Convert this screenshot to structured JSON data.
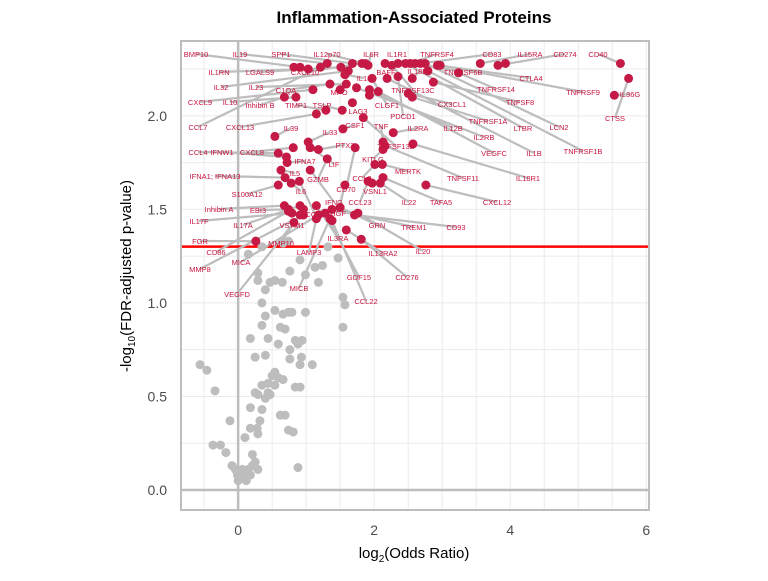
{
  "chart_data": {
    "type": "scatter",
    "title": "Inflammation-Associated Proteins",
    "xlabel": {
      "main": "log",
      "sub": "2",
      "rest": "(Odds Ratio)"
    },
    "ylabel": {
      "pre": "-log",
      "sub": "10",
      "rest": "(FDR-adjusted p-value)"
    },
    "xlim": [
      -0.84,
      6.04
    ],
    "ylim": [
      -0.107,
      2.4
    ],
    "xticks": [
      "0",
      "2",
      "4",
      "6"
    ],
    "xtick_values": [
      0,
      2,
      4,
      6
    ],
    "yticks": [
      "0.0",
      "0.5",
      "1.0",
      "1.5",
      "2.0"
    ],
    "ytick_values": [
      0,
      0.5,
      1,
      1.5,
      2
    ],
    "grid": true,
    "threshold": 1.301,
    "colors": {
      "significant": "#c41a45",
      "nonsignificant": "#bdbdbd",
      "threshold": "#ff0000",
      "label": "#c8143f",
      "connector": "#bdbdbd"
    },
    "significant_points": [
      {
        "x": 0.91,
        "y": 2.26,
        "label": "BMP10"
      },
      {
        "x": 1.03,
        "y": 2.25,
        "label": "IL1RN"
      },
      {
        "x": 1.31,
        "y": 2.28,
        "label": "IL19"
      },
      {
        "x": 1.51,
        "y": 2.26,
        "label": "LGALS9"
      },
      {
        "x": 1.68,
        "y": 2.28,
        "label": "SPP1"
      },
      {
        "x": 1.82,
        "y": 2.28,
        "label": "CXCL10"
      },
      {
        "x": 1.87,
        "y": 2.28,
        "label": "IL12p70"
      },
      {
        "x": 1.91,
        "y": 2.27,
        "label": "IL6R"
      },
      {
        "x": 2.16,
        "y": 2.28,
        "label": "BAFF"
      },
      {
        "x": 2.35,
        "y": 2.28,
        "label": "IL1R1"
      },
      {
        "x": 2.26,
        "y": 2.27,
        "label": "TNFRSF13C"
      },
      {
        "x": 2.53,
        "y": 2.28,
        "label": "TNFRSF4"
      },
      {
        "x": 2.6,
        "y": 2.28,
        "label": "TNFRSF6B"
      },
      {
        "x": 2.68,
        "y": 2.28,
        "label": "CD83"
      },
      {
        "x": 3.56,
        "y": 2.28,
        "label": "IL15RA"
      },
      {
        "x": 3.82,
        "y": 2.27,
        "label": "CD274"
      },
      {
        "x": 5.62,
        "y": 2.28,
        "label": "CD40"
      },
      {
        "x": 3.93,
        "y": 2.28,
        "label": ""
      },
      {
        "x": 5.53,
        "y": 2.11,
        "label": "IL36G"
      },
      {
        "x": 5.74,
        "y": 2.2,
        "label": "CTSS"
      },
      {
        "x": 2.93,
        "y": 2.27,
        "label": "CTLA4"
      },
      {
        "x": 3.24,
        "y": 2.23,
        "label": "TNFRSF14"
      },
      {
        "x": 2.97,
        "y": 2.27,
        "label": "TNFRSF9"
      },
      {
        "x": 2.87,
        "y": 2.18,
        "label": "TNFSF8"
      },
      {
        "x": 2.56,
        "y": 2.1,
        "label": "TNFRSF1A"
      },
      {
        "x": 2.5,
        "y": 2.12,
        "label": "CX3CL1"
      },
      {
        "x": 2.75,
        "y": 2.28,
        "label": "LCN2"
      },
      {
        "x": 2.46,
        "y": 2.28,
        "label": "LTBR"
      },
      {
        "x": 2.79,
        "y": 2.24,
        "label": "TNFRSF1B"
      },
      {
        "x": 2.19,
        "y": 2.2,
        "label": "IL1B"
      },
      {
        "x": 2.06,
        "y": 2.13,
        "label": "VEGFC"
      },
      {
        "x": 1.74,
        "y": 2.15,
        "label": "IL2RB"
      },
      {
        "x": 1.93,
        "y": 2.14,
        "label": "IL12B"
      },
      {
        "x": 2.28,
        "y": 1.91,
        "label": "IL2RA"
      },
      {
        "x": 1.57,
        "y": 2.22,
        "label": "IL18"
      },
      {
        "x": 1.97,
        "y": 2.2,
        "label": "CLGF1"
      },
      {
        "x": 2.35,
        "y": 2.21,
        "label": "PDCD1"
      },
      {
        "x": 2.56,
        "y": 2.2,
        "label": "IL18BP"
      },
      {
        "x": 1.62,
        "y": 2.24,
        "label": "IL32"
      },
      {
        "x": 1.59,
        "y": 2.17,
        "label": "IL23"
      },
      {
        "x": 1.35,
        "y": 2.17,
        "label": "C1QA"
      },
      {
        "x": 1.1,
        "y": 2.14,
        "label": "CXCL9"
      },
      {
        "x": 0.85,
        "y": 2.1,
        "label": "IL10"
      },
      {
        "x": 0.68,
        "y": 2.1,
        "label": "Inhibin B"
      },
      {
        "x": 1.5,
        "y": 2.14,
        "label": "MPO"
      },
      {
        "x": 1.68,
        "y": 2.07,
        "label": "LAG3"
      },
      {
        "x": 1.29,
        "y": 2.03,
        "label": "TIMP1"
      },
      {
        "x": 1.53,
        "y": 2.03,
        "label": "TSLP"
      },
      {
        "x": 1.84,
        "y": 1.99,
        "label": "TNFSF13B"
      },
      {
        "x": 1.21,
        "y": 2.26,
        "label": "CCL7"
      },
      {
        "x": 1.15,
        "y": 2.01,
        "label": "CXCL13"
      },
      {
        "x": 0.54,
        "y": 1.89,
        "label": "IL39"
      },
      {
        "x": 1.54,
        "y": 1.93,
        "label": "CSF1"
      },
      {
        "x": 2.13,
        "y": 1.86,
        "label": "TNF"
      },
      {
        "x": 1.03,
        "y": 1.86,
        "label": "IL33"
      },
      {
        "x": 1.18,
        "y": 1.82,
        "label": "PTX3"
      },
      {
        "x": 1.06,
        "y": 1.83,
        "label": "LIF"
      },
      {
        "x": 2.13,
        "y": 1.82,
        "label": "KITLG"
      },
      {
        "x": 2.01,
        "y": 1.74,
        "label": "CCL2"
      },
      {
        "x": 1.72,
        "y": 1.83,
        "label": "CD70"
      },
      {
        "x": 0.59,
        "y": 1.8,
        "label": "CCL4"
      },
      {
        "x": 0.71,
        "y": 1.78,
        "label": "IFNW1"
      },
      {
        "x": 0.81,
        "y": 1.83,
        "label": "CXCL8"
      },
      {
        "x": 0.72,
        "y": 1.75,
        "label": "IFNA7"
      },
      {
        "x": 1.31,
        "y": 1.77,
        "label": "GZMB"
      },
      {
        "x": 0.63,
        "y": 1.71,
        "label": "IL5"
      },
      {
        "x": 0.69,
        "y": 1.67,
        "label": "IFNA1; IFNA13"
      },
      {
        "x": 0.59,
        "y": 1.63,
        "label": "S100A12"
      },
      {
        "x": 1.06,
        "y": 1.71,
        "label": "IFNG"
      },
      {
        "x": 1.91,
        "y": 1.65,
        "label": "CCL23"
      },
      {
        "x": 2.12,
        "y": 1.74,
        "label": "MERTK"
      },
      {
        "x": 2.16,
        "y": 1.84,
        "label": "TNFSF11"
      },
      {
        "x": 2.57,
        "y": 1.85,
        "label": "IL18R1"
      },
      {
        "x": 0.9,
        "y": 1.65,
        "label": "CCL8"
      },
      {
        "x": 0.78,
        "y": 1.64,
        "label": "IL6"
      },
      {
        "x": 1.57,
        "y": 1.63,
        "label": "HGF"
      },
      {
        "x": 0.68,
        "y": 1.52,
        "label": "Inhibin A"
      },
      {
        "x": 0.74,
        "y": 1.5,
        "label": "EBI3"
      },
      {
        "x": 0.96,
        "y": 1.5,
        "label": "VSTM1"
      },
      {
        "x": 1.97,
        "y": 1.64,
        "label": "VSNL1"
      },
      {
        "x": 2.09,
        "y": 1.64,
        "label": "IL22"
      },
      {
        "x": 2.13,
        "y": 1.67,
        "label": "TAFA5"
      },
      {
        "x": 2.76,
        "y": 1.63,
        "label": "CXCL12"
      },
      {
        "x": 0.79,
        "y": 1.48,
        "label": "IL17F"
      },
      {
        "x": 0.91,
        "y": 1.52,
        "label": "IL17A"
      },
      {
        "x": 1.5,
        "y": 1.51,
        "label": "GRN"
      },
      {
        "x": 1.38,
        "y": 1.5,
        "label": "TREM1"
      },
      {
        "x": 1.71,
        "y": 1.47,
        "label": "CD93"
      },
      {
        "x": 0.82,
        "y": 1.43,
        "label": "MMP10"
      },
      {
        "x": 1.15,
        "y": 1.52,
        "label": "IL3RA"
      },
      {
        "x": 0.26,
        "y": 1.33,
        "label": "FGR"
      },
      {
        "x": 0.74,
        "y": 1.49,
        "label": "CD86"
      },
      {
        "x": 1.76,
        "y": 1.48,
        "label": "IL20"
      },
      {
        "x": 1.59,
        "y": 1.39,
        "label": "IL13RA2"
      },
      {
        "x": 1.15,
        "y": 1.45,
        "label": "LAMP3"
      },
      {
        "x": 0.96,
        "y": 1.47,
        "label": "MMP8"
      },
      {
        "x": 1.18,
        "y": 1.47,
        "label": "MICA"
      },
      {
        "x": 1.28,
        "y": 1.48,
        "label": "GDF15"
      },
      {
        "x": 1.81,
        "y": 1.34,
        "label": "CD276"
      },
      {
        "x": 1.35,
        "y": 1.45,
        "label": "MICB"
      },
      {
        "x": 0.91,
        "y": 1.47,
        "label": "VEGFD"
      },
      {
        "x": 1.38,
        "y": 1.44,
        "label": "CCL22"
      },
      {
        "x": 1.93,
        "y": 2.11,
        "label": ""
      },
      {
        "x": 0.82,
        "y": 2.26,
        "label": ""
      }
    ],
    "nonsignificant_points": [
      [
        -0.56,
        0.67
      ],
      [
        -0.46,
        0.64
      ],
      [
        -0.34,
        0.53
      ],
      [
        -0.37,
        0.24
      ],
      [
        -0.26,
        0.24
      ],
      [
        -0.18,
        0.2
      ],
      [
        -0.12,
        0.37
      ],
      [
        -0.09,
        0.13
      ],
      [
        -0.04,
        0.11
      ],
      [
        -0.01,
        0.08
      ],
      [
        0.0,
        0.05
      ],
      [
        0.03,
        0.06
      ],
      [
        0.06,
        0.11
      ],
      [
        0.09,
        0.09
      ],
      [
        0.12,
        0.05
      ],
      [
        0.15,
        0.11
      ],
      [
        0.18,
        0.08
      ],
      [
        0.21,
        0.13
      ],
      [
        0.25,
        0.15
      ],
      [
        0.29,
        0.11
      ],
      [
        0.1,
        0.28
      ],
      [
        0.18,
        0.33
      ],
      [
        0.21,
        0.19
      ],
      [
        0.28,
        0.33
      ],
      [
        0.29,
        0.3
      ],
      [
        0.32,
        0.37
      ],
      [
        0.35,
        0.43
      ],
      [
        0.4,
        0.49
      ],
      [
        0.18,
        0.44
      ],
      [
        0.25,
        0.52
      ],
      [
        0.29,
        0.51
      ],
      [
        0.35,
        0.56
      ],
      [
        0.44,
        0.52
      ],
      [
        0.47,
        0.51
      ],
      [
        0.5,
        0.61
      ],
      [
        0.54,
        0.63
      ],
      [
        0.59,
        0.6
      ],
      [
        0.44,
        0.57
      ],
      [
        0.54,
        0.56
      ],
      [
        0.66,
        0.59
      ],
      [
        0.62,
        0.4
      ],
      [
        0.69,
        0.4
      ],
      [
        0.74,
        0.32
      ],
      [
        0.81,
        0.31
      ],
      [
        0.88,
        0.12
      ],
      [
        0.84,
        0.55
      ],
      [
        0.91,
        0.55
      ],
      [
        0.76,
        0.7
      ],
      [
        0.25,
        0.71
      ],
      [
        0.4,
        0.72
      ],
      [
        0.44,
        0.81
      ],
      [
        0.59,
        0.78
      ],
      [
        0.76,
        0.75
      ],
      [
        0.88,
        0.78
      ],
      [
        0.94,
        0.8
      ],
      [
        0.18,
        0.81
      ],
      [
        0.35,
        0.88
      ],
      [
        0.4,
        0.93
      ],
      [
        0.54,
        0.96
      ],
      [
        0.66,
        0.94
      ],
      [
        0.74,
        0.95
      ],
      [
        0.79,
        0.95
      ],
      [
        0.62,
        0.87
      ],
      [
        0.69,
        0.86
      ],
      [
        0.99,
        0.95
      ],
      [
        0.84,
        0.8
      ],
      [
        0.35,
        1.0
      ],
      [
        0.4,
        1.07
      ],
      [
        0.29,
        1.16
      ],
      [
        0.29,
        1.12
      ],
      [
        0.47,
        1.11
      ],
      [
        0.54,
        1.12
      ],
      [
        0.65,
        1.11
      ],
      [
        0.76,
        1.17
      ],
      [
        0.99,
        1.15
      ],
      [
        0.91,
        1.23
      ],
      [
        1.13,
        1.19
      ],
      [
        1.18,
        1.11
      ],
      [
        1.24,
        1.2
      ],
      [
        1.54,
        1.03
      ],
      [
        1.57,
        0.99
      ],
      [
        1.54,
        0.87
      ],
      [
        1.09,
        0.67
      ],
      [
        0.91,
        0.67
      ],
      [
        0.93,
        0.71
      ],
      [
        0.15,
        1.26
      ],
      [
        0.35,
        1.3
      ],
      [
        1.32,
        1.3
      ],
      [
        1.47,
        1.24
      ],
      [
        0.66,
        1.32
      ],
      [
        0.74,
        1.33
      ]
    ]
  }
}
